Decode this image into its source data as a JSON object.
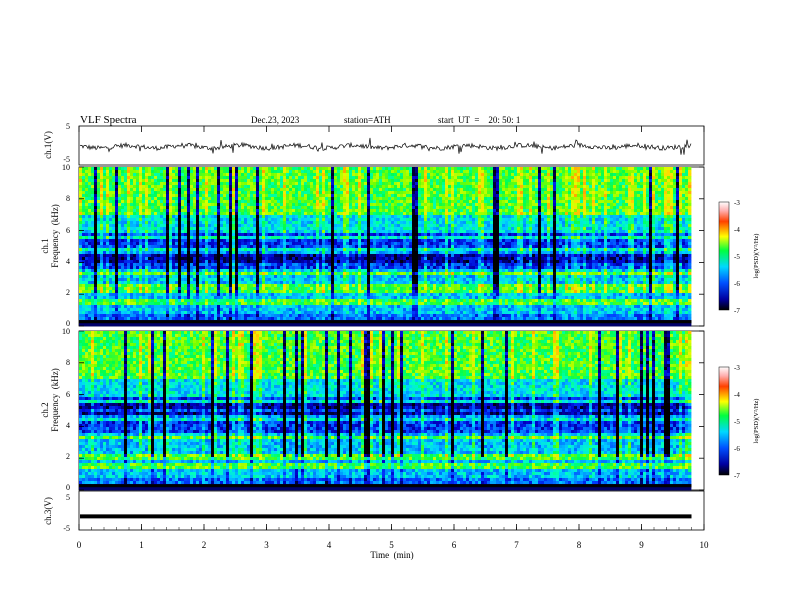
{
  "header": {
    "title": "VLF  Spectra",
    "date": "Dec.23, 2023",
    "station": "station=ATH",
    "start": "start  UT  =    20: 50: 1"
  },
  "chart_data": [
    {
      "type": "line",
      "panel": "ch1-waveform",
      "ylabel": "ch.1(V)",
      "ylim": [
        -5,
        5
      ],
      "yticks": [
        "5",
        "-5"
      ],
      "color": "#000000"
    },
    {
      "type": "heatmap",
      "panel": "ch1-spectrogram",
      "ylabel": "ch.1\nFrequency  (kHz)",
      "ylabel_lines": [
        "ch.1",
        "Frequency  (kHz)"
      ],
      "ylim": [
        0,
        10
      ],
      "yticks": [
        "0",
        "2",
        "4",
        "6",
        "8",
        "10"
      ],
      "colorbar": {
        "label": "log(PSD)(V²/Hz)",
        "range": [
          -7,
          -3
        ],
        "ticks": [
          "-3",
          "-4",
          "-5",
          "-6",
          "-7"
        ]
      },
      "bright_bands_khz": [
        1.5,
        2.2,
        2.5,
        3.3,
        4.7,
        5.6
      ],
      "dark_bands_khz": [
        4.2,
        4.5
      ]
    },
    {
      "type": "heatmap",
      "panel": "ch2-spectrogram",
      "ylabel": "ch.2\nFrequency  (kHz)",
      "ylabel_lines": [
        "ch.2",
        "Frequency  (kHz)"
      ],
      "ylim": [
        0,
        10
      ],
      "yticks": [
        "0",
        "2",
        "4",
        "6",
        "8",
        "10"
      ],
      "colorbar": {
        "label": "log(PSD)(V²/Hz)",
        "range": [
          -7,
          -3
        ],
        "ticks": [
          "-3",
          "-4",
          "-5",
          "-6",
          "-7"
        ]
      },
      "bright_bands_khz": [
        1.5,
        2.0,
        2.2,
        3.3,
        4.5,
        5.6
      ],
      "dark_bands_khz": [
        4.7,
        5.2
      ]
    },
    {
      "type": "line",
      "panel": "ch3-waveform",
      "ylabel": "ch.3(V)",
      "ylim": [
        -5,
        5
      ],
      "yticks": [
        "5",
        "-5"
      ],
      "level": -1.5,
      "color": "#000000"
    }
  ],
  "x_axis": {
    "xlabel": "Time  (min)",
    "xlim": [
      0,
      10
    ],
    "data_end": 9.8,
    "ticks": [
      "0",
      "1",
      "2",
      "3",
      "4",
      "5",
      "6",
      "7",
      "8",
      "9",
      "10"
    ]
  }
}
